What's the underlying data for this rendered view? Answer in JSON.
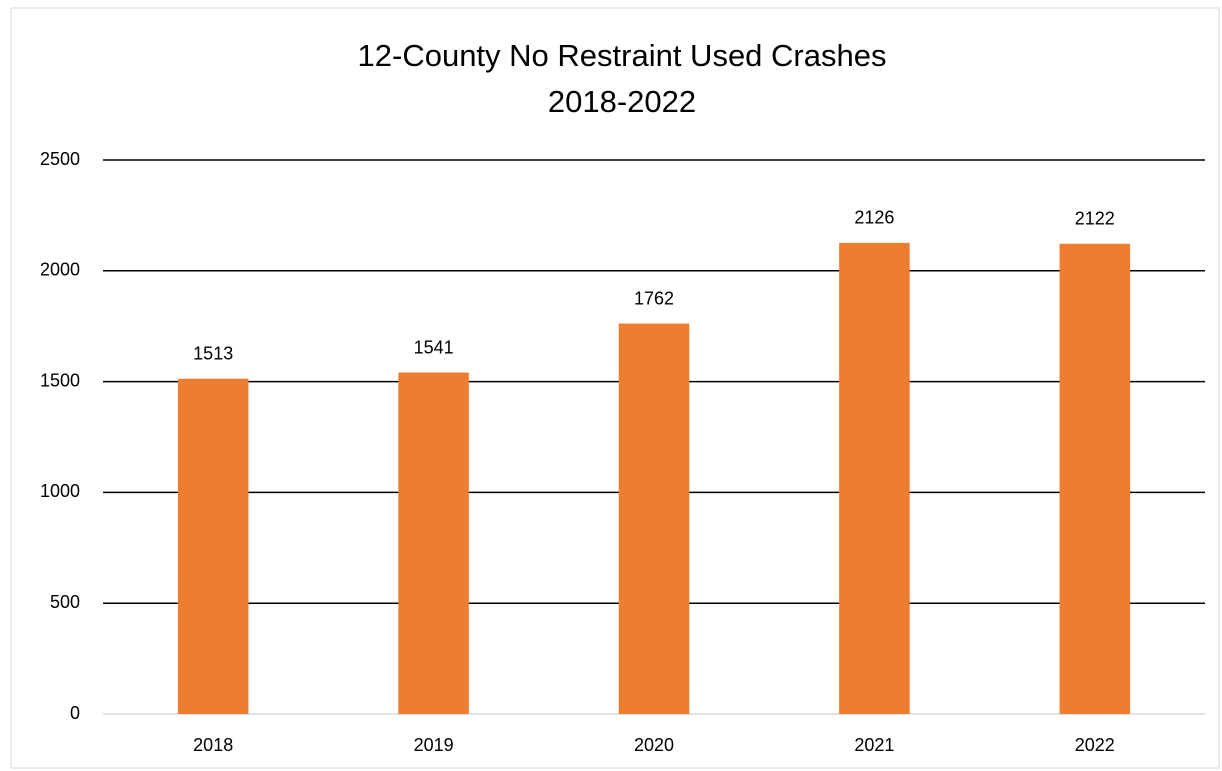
{
  "chart_data": {
    "type": "bar",
    "title": "12-County No Restraint Used Crashes",
    "subtitle": "2018-2022",
    "categories": [
      "2018",
      "2019",
      "2020",
      "2021",
      "2022"
    ],
    "values": [
      1513,
      1541,
      1762,
      2126,
      2122
    ],
    "color": "#ed7d31",
    "ylim": [
      0,
      2500
    ],
    "yticks": [
      0,
      500,
      1000,
      1500,
      2000,
      2500
    ],
    "grid": true
  }
}
